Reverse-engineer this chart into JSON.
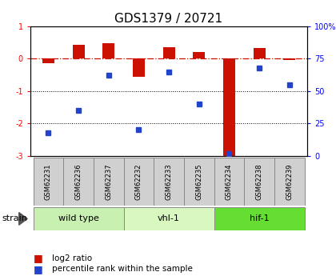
{
  "title": "GDS1379 / 20721",
  "samples": [
    "GSM62231",
    "GSM62236",
    "GSM62237",
    "GSM62232",
    "GSM62233",
    "GSM62235",
    "GSM62234",
    "GSM62238",
    "GSM62239"
  ],
  "log2_ratio": [
    -0.15,
    0.42,
    0.48,
    -0.55,
    0.35,
    0.2,
    -3.05,
    0.32,
    -0.05
  ],
  "percentile_rank": [
    18,
    35,
    62,
    20,
    65,
    40,
    2,
    68,
    55
  ],
  "groups": [
    {
      "label": "wild type",
      "samples": [
        0,
        1,
        2
      ],
      "color": "#c8f0b0"
    },
    {
      "label": "vhl-1",
      "samples": [
        3,
        4,
        5
      ],
      "color": "#d8f8c0"
    },
    {
      "label": "hif-1",
      "samples": [
        6,
        7,
        8
      ],
      "color": "#66dd33"
    }
  ],
  "ylim_left": [
    -3.0,
    1.0
  ],
  "ylim_right": [
    0,
    100
  ],
  "bar_color": "#cc1100",
  "dot_color": "#2244cc",
  "ref_line_color": "#cc1100",
  "background_color": "#ffffff",
  "sample_box_color": "#d0d0d0",
  "group_box_border": "#888888",
  "title_fontsize": 11,
  "tick_fontsize": 7,
  "bar_width": 0.4
}
